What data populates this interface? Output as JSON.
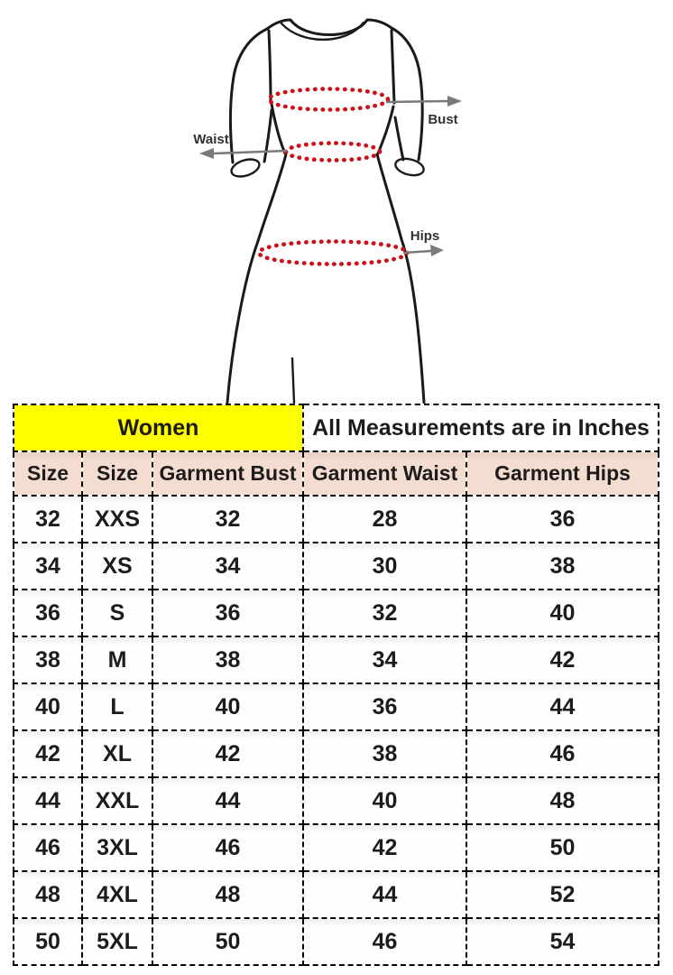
{
  "colors": {
    "outline": "#1a1a1a",
    "dots": "#cb1016",
    "arrow": "#7a7a7a",
    "label": "#323232",
    "women-bg": "#ffff00",
    "header-bg": "#f4dcd0",
    "border": "#000000",
    "text": "#1c1c1c"
  },
  "diagram": {
    "bust_label": "Bust",
    "waist_label": "Waist",
    "hips_label": "Hips"
  },
  "table": {
    "group_headers": [
      {
        "label": "Women",
        "colspan": 3
      },
      {
        "label": "All Measurements are in Inches",
        "colspan": 2
      }
    ],
    "column_headers": [
      "Size",
      "Size",
      "Garment Bust",
      "Garment Waist",
      "Garment Hips"
    ],
    "rows": [
      [
        "32",
        "XXS",
        "32",
        "28",
        "36"
      ],
      [
        "34",
        "XS",
        "34",
        "30",
        "38"
      ],
      [
        "36",
        "S",
        "36",
        "32",
        "40"
      ],
      [
        "38",
        "M",
        "38",
        "34",
        "42"
      ],
      [
        "40",
        "L",
        "40",
        "36",
        "44"
      ],
      [
        "42",
        "XL",
        "42",
        "38",
        "46"
      ],
      [
        "44",
        "XXL",
        "44",
        "40",
        "48"
      ],
      [
        "46",
        "3XL",
        "46",
        "42",
        "50"
      ],
      [
        "48",
        "4XL",
        "48",
        "44",
        "52"
      ],
      [
        "50",
        "5XL",
        "50",
        "46",
        "54"
      ]
    ]
  }
}
